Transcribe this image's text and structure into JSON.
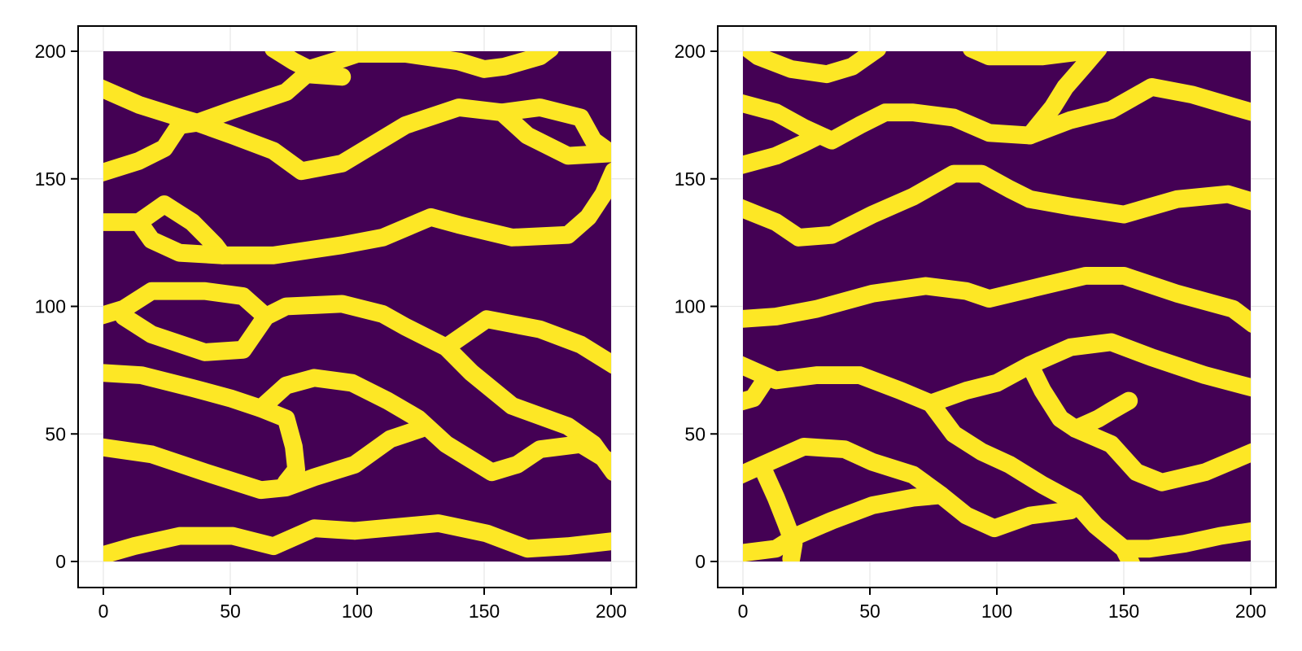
{
  "colors": {
    "background_field": "#440154",
    "channel": "#FDE725",
    "grid": "#e6e6e6",
    "axis": "#000000"
  },
  "chart_data": [
    {
      "type": "heatmap",
      "title": "",
      "xlabel": "",
      "ylabel": "",
      "xlim": [
        -10,
        210
      ],
      "ylim": [
        -10,
        210
      ],
      "xticks": [
        0,
        50,
        100,
        150,
        200
      ],
      "yticks": [
        0,
        50,
        100,
        150,
        200
      ],
      "xtick_labels": [
        "0",
        "50",
        "100",
        "150",
        "200"
      ],
      "ytick_labels": [
        "0",
        "50",
        "100",
        "150",
        "200"
      ],
      "grid": true,
      "legend": null,
      "colormap": "viridis (binary: 0 = purple, 1 = yellow)",
      "grid_size": [
        200,
        200
      ],
      "description": "Binary facies realization: meandering yellow channels on purple background",
      "channel_width": 7,
      "channels": [
        [
          [
            -2,
            186
          ],
          [
            14,
            179
          ],
          [
            30,
            174
          ],
          [
            37,
            172
          ],
          [
            51,
            177
          ],
          [
            72,
            184
          ],
          [
            80,
            191
          ],
          [
            94,
            190
          ]
        ],
        [
          [
            -2,
            152
          ],
          [
            14,
            157
          ],
          [
            24,
            162
          ],
          [
            30,
            171
          ],
          [
            37,
            172
          ],
          [
            51,
            167
          ],
          [
            67,
            161
          ],
          [
            78,
            153
          ],
          [
            94,
            156
          ],
          [
            119,
            171
          ],
          [
            140,
            178
          ],
          [
            157,
            176
          ],
          [
            167,
            167
          ],
          [
            183,
            159
          ],
          [
            200,
            160
          ]
        ],
        [
          [
            157,
            176
          ],
          [
            172,
            178
          ],
          [
            188,
            174
          ],
          [
            193,
            165
          ],
          [
            200,
            160
          ]
        ],
        [
          [
            67,
            201
          ],
          [
            75,
            196
          ],
          [
            81,
            193
          ],
          [
            94,
            197
          ],
          [
            100,
            199
          ],
          [
            119,
            199
          ],
          [
            140,
            196
          ],
          [
            150,
            193
          ],
          [
            158,
            194
          ],
          [
            172,
            198
          ],
          [
            176,
            201
          ]
        ],
        [
          [
            -2,
            133
          ],
          [
            14,
            133
          ],
          [
            24,
            140
          ],
          [
            35,
            133
          ],
          [
            44,
            124
          ],
          [
            47,
            120
          ]
        ],
        [
          [
            14,
            133
          ],
          [
            19,
            126
          ],
          [
            30,
            121
          ],
          [
            47,
            120
          ],
          [
            67,
            120
          ],
          [
            94,
            124
          ],
          [
            110,
            127
          ],
          [
            129,
            135
          ],
          [
            140,
            132
          ],
          [
            161,
            127
          ],
          [
            183,
            128
          ],
          [
            191,
            135
          ],
          [
            197,
            144
          ],
          [
            201,
            153
          ]
        ],
        [
          [
            -2,
            96
          ],
          [
            8,
            99
          ],
          [
            19,
            106
          ],
          [
            40,
            106
          ],
          [
            55,
            104
          ],
          [
            64,
            96
          ]
        ],
        [
          [
            8,
            96
          ],
          [
            19,
            89
          ],
          [
            40,
            82
          ],
          [
            55,
            83
          ],
          [
            64,
            96
          ],
          [
            72,
            100
          ],
          [
            94,
            101
          ],
          [
            110,
            97
          ],
          [
            119,
            92
          ],
          [
            135,
            84
          ],
          [
            145,
            74
          ],
          [
            161,
            61
          ],
          [
            183,
            53
          ],
          [
            193,
            46
          ],
          [
            201,
            35
          ]
        ],
        [
          [
            135,
            84
          ],
          [
            151,
            95
          ],
          [
            172,
            91
          ],
          [
            188,
            85
          ],
          [
            201,
            77
          ]
        ],
        [
          [
            -2,
            74
          ],
          [
            15,
            73
          ],
          [
            35,
            68
          ],
          [
            50,
            64
          ],
          [
            62,
            60
          ],
          [
            72,
            56
          ],
          [
            75,
            45
          ],
          [
            76,
            36
          ],
          [
            72,
            31
          ]
        ],
        [
          [
            62,
            60
          ],
          [
            72,
            69
          ],
          [
            83,
            72
          ],
          [
            98,
            70
          ],
          [
            112,
            63
          ],
          [
            124,
            56
          ],
          [
            135,
            46
          ],
          [
            153,
            35
          ],
          [
            163,
            38
          ],
          [
            172,
            44
          ],
          [
            188,
            46
          ],
          [
            198,
            40
          ],
          [
            201,
            38
          ]
        ],
        [
          [
            -2,
            45
          ],
          [
            19,
            42
          ],
          [
            40,
            35
          ],
          [
            62,
            28
          ],
          [
            72,
            29
          ],
          [
            83,
            33
          ],
          [
            99,
            38
          ],
          [
            113,
            48
          ],
          [
            125,
            52
          ]
        ],
        [
          [
            -2,
            2
          ],
          [
            12,
            6
          ],
          [
            30,
            10
          ],
          [
            51,
            10
          ],
          [
            67,
            6
          ],
          [
            83,
            13
          ],
          [
            99,
            12
          ],
          [
            132,
            15
          ],
          [
            151,
            11
          ],
          [
            167,
            5
          ],
          [
            183,
            6
          ],
          [
            201,
            8
          ]
        ]
      ]
    },
    {
      "type": "heatmap",
      "title": "",
      "xlabel": "",
      "ylabel": "",
      "xlim": [
        -10,
        210
      ],
      "ylim": [
        -10,
        210
      ],
      "xticks": [
        0,
        50,
        100,
        150,
        200
      ],
      "yticks": [
        0,
        50,
        100,
        150,
        200
      ],
      "xtick_labels": [
        "0",
        "50",
        "100",
        "150",
        "200"
      ],
      "ytick_labels": [
        "0",
        "50",
        "100",
        "150",
        "200"
      ],
      "grid": true,
      "legend": null,
      "colormap": "viridis (binary: 0 = purple, 1 = yellow)",
      "grid_size": [
        200,
        200
      ],
      "description": "Binary facies realization: meandering yellow channels on purple background",
      "channel_width": 7,
      "channels": [
        [
          [
            2,
            201
          ],
          [
            6,
            198
          ],
          [
            19,
            193
          ],
          [
            33,
            191
          ],
          [
            43,
            194
          ],
          [
            53,
            201
          ]
        ],
        [
          [
            90,
            201
          ],
          [
            97,
            198
          ],
          [
            118,
            198
          ],
          [
            134,
            200
          ]
        ],
        [
          [
            -2,
            180
          ],
          [
            13,
            176
          ],
          [
            24,
            170
          ],
          [
            35,
            165
          ],
          [
            46,
            171
          ],
          [
            56,
            176
          ],
          [
            67,
            176
          ],
          [
            83,
            174
          ],
          [
            97,
            168
          ],
          [
            113,
            167
          ],
          [
            129,
            173
          ],
          [
            145,
            177
          ],
          [
            161,
            186
          ],
          [
            177,
            183
          ],
          [
            194,
            178
          ],
          [
            201,
            176
          ]
        ],
        [
          [
            -2,
            155
          ],
          [
            13,
            159
          ],
          [
            24,
            164
          ],
          [
            30,
            167
          ]
        ],
        [
          [
            113,
            167
          ],
          [
            122,
            178
          ],
          [
            127,
            186
          ],
          [
            134,
            194
          ],
          [
            140,
            201
          ]
        ],
        [
          [
            -2,
            139
          ],
          [
            13,
            133
          ],
          [
            22,
            127
          ],
          [
            35,
            128
          ],
          [
            51,
            136
          ],
          [
            67,
            143
          ],
          [
            83,
            152
          ],
          [
            94,
            152
          ],
          [
            105,
            146
          ],
          [
            113,
            142
          ],
          [
            130,
            139
          ],
          [
            150,
            136
          ],
          [
            171,
            142
          ],
          [
            191,
            144
          ],
          [
            201,
            141
          ]
        ],
        [
          [
            -2,
            95
          ],
          [
            13,
            96
          ],
          [
            29,
            99
          ],
          [
            51,
            105
          ],
          [
            72,
            108
          ],
          [
            88,
            106
          ],
          [
            97,
            103
          ],
          [
            118,
            108
          ],
          [
            135,
            112
          ],
          [
            150,
            112
          ],
          [
            171,
            105
          ],
          [
            193,
            99
          ],
          [
            201,
            93
          ]
        ],
        [
          [
            -3,
            78
          ],
          [
            6,
            74
          ],
          [
            13,
            71
          ],
          [
            29,
            73
          ],
          [
            46,
            73
          ],
          [
            62,
            67
          ],
          [
            74,
            62
          ],
          [
            88,
            67
          ],
          [
            100,
            70
          ],
          [
            113,
            77
          ],
          [
            129,
            84
          ],
          [
            145,
            86
          ],
          [
            161,
            80
          ],
          [
            182,
            73
          ],
          [
            201,
            68
          ]
        ],
        [
          [
            -3,
            62
          ],
          [
            4,
            64
          ],
          [
            8,
            70
          ]
        ],
        [
          [
            113,
            77
          ],
          [
            118,
            67
          ],
          [
            125,
            56
          ],
          [
            131,
            52
          ],
          [
            145,
            46
          ],
          [
            155,
            35
          ],
          [
            165,
            31
          ],
          [
            182,
            35
          ],
          [
            201,
            43
          ]
        ],
        [
          [
            131,
            52
          ],
          [
            140,
            56
          ],
          [
            145,
            59
          ],
          [
            152,
            63
          ]
        ],
        [
          [
            74,
            62
          ],
          [
            83,
            50
          ],
          [
            94,
            43
          ],
          [
            105,
            38
          ],
          [
            118,
            30
          ],
          [
            131,
            23
          ],
          [
            139,
            14
          ],
          [
            150,
            5
          ],
          [
            153,
            -1
          ]
        ],
        [
          [
            -3,
            33
          ],
          [
            8,
            38
          ],
          [
            24,
            45
          ],
          [
            40,
            44
          ],
          [
            51,
            39
          ],
          [
            67,
            34
          ],
          [
            78,
            26
          ],
          [
            88,
            18
          ],
          [
            99,
            13
          ],
          [
            113,
            18
          ],
          [
            129,
            20
          ],
          [
            131,
            23
          ]
        ],
        [
          [
            8,
            36
          ],
          [
            13,
            25
          ],
          [
            17,
            15
          ],
          [
            20,
            7
          ],
          [
            19,
            1
          ]
        ],
        [
          [
            -3,
            3
          ],
          [
            13,
            5
          ],
          [
            21,
            10
          ],
          [
            35,
            16
          ],
          [
            51,
            22
          ],
          [
            67,
            25
          ],
          [
            78,
            26
          ]
        ],
        [
          [
            150,
            5
          ],
          [
            160,
            5
          ],
          [
            174,
            7
          ],
          [
            188,
            10
          ],
          [
            201,
            12
          ]
        ]
      ]
    }
  ]
}
